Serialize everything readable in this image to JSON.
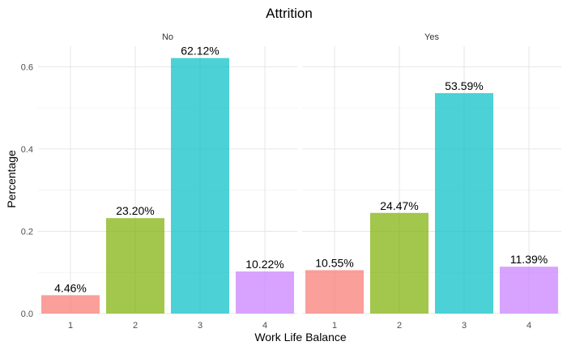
{
  "chart_data": {
    "type": "bar",
    "title": "Attrition",
    "xlabel": "Work Life Balance",
    "ylabel": "Percentage",
    "ylim": [
      0,
      0.65
    ],
    "yticks": [
      "0.0",
      "0.2",
      "0.4",
      "0.6"
    ],
    "grid": true,
    "categories": [
      "1",
      "2",
      "3",
      "4"
    ],
    "colors": [
      "#F8766D",
      "#7CAE00",
      "#00BFC4",
      "#C77CFF"
    ],
    "facets": [
      {
        "name": "No",
        "values": [
          0.0446,
          0.232,
          0.6212,
          0.1022
        ],
        "labels": [
          "4.46%",
          "23.20%",
          "62.12%",
          "10.22%"
        ]
      },
      {
        "name": "Yes",
        "values": [
          0.1055,
          0.2447,
          0.5359,
          0.1139
        ],
        "labels": [
          "10.55%",
          "24.47%",
          "53.59%",
          "11.39%"
        ]
      }
    ]
  }
}
